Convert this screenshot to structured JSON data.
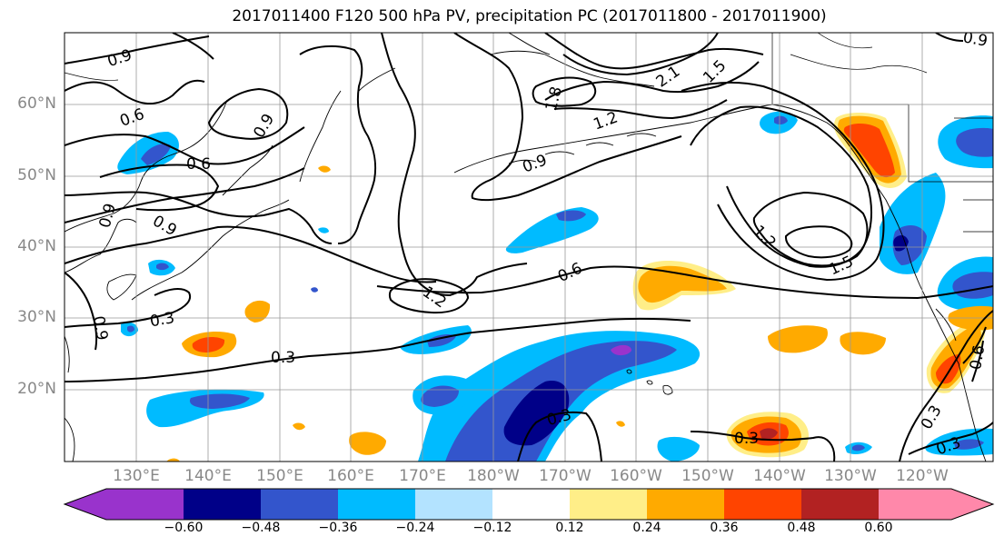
{
  "title": "2017011400 F120 500 hPa PV, precipitation PC (2017011800 - 2017011900)",
  "lat_labels": [
    "60°N",
    "50°N",
    "40°N",
    "30°N",
    "20°N"
  ],
  "lon_labels": [
    "130°E",
    "140°E",
    "150°E",
    "160°E",
    "170°E",
    "180°W",
    "170°W",
    "160°W",
    "150°W",
    "140°W",
    "130°W",
    "120°W"
  ],
  "contour_labels": [
    "0.9",
    "0.6",
    "0.6",
    "0.9",
    "0.9",
    "0.9",
    "0.9",
    "1.2",
    "1.8",
    "2.1",
    "1.5",
    "0.9",
    "1.2",
    "1.2",
    "1.5",
    "0.6",
    "0.3",
    "0.3",
    "0.3",
    "0.3",
    "0.3",
    "0.3",
    "0.9",
    "0.6"
  ],
  "colorbar": {
    "tick_labels": [
      "−0.60",
      "−0.48",
      "−0.36",
      "−0.24",
      "−0.12",
      "0.12",
      "0.24",
      "0.36",
      "0.48",
      "0.60"
    ],
    "colors": [
      "#9933cc",
      "#000088",
      "#3355cc",
      "#00bbff",
      "#b3e3ff",
      "#ffffff",
      "#ffee88",
      "#ffaa00",
      "#ff4400",
      "#b22222",
      "#ff88aa"
    ]
  },
  "colors": {
    "frame": "#000000",
    "grid": "#999999",
    "contour": "#000000"
  }
}
